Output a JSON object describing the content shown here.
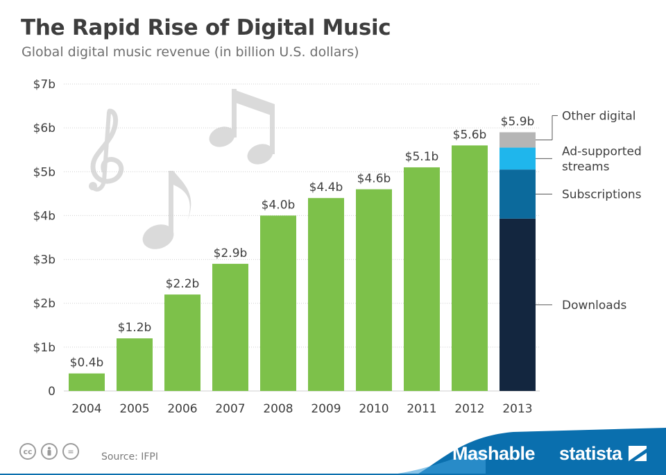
{
  "header": {
    "title": "The Rapid Rise of Digital Music",
    "subtitle": "Global digital music revenue (in billion U.S. dollars)"
  },
  "footer": {
    "source": "Source: IFPI",
    "license_icons": [
      "cc",
      "by",
      "="
    ],
    "brand_left": "Mashable",
    "brand_right": "statista"
  },
  "colors": {
    "bar": "#7dc14a",
    "downloads": "#13263f",
    "subscriptions": "#0c6a9c",
    "ad_supported": "#1fb6ec",
    "other_digital": "#b5b5b5",
    "grid": "#cfcfcf",
    "text": "#3d3d3d",
    "footer_band": "#0a6fae",
    "notes": "#d9d9d9"
  },
  "chart_data": {
    "type": "bar",
    "categories": [
      "2004",
      "2005",
      "2006",
      "2007",
      "2008",
      "2009",
      "2010",
      "2011",
      "2012",
      "2013"
    ],
    "values": [
      0.4,
      1.2,
      2.2,
      2.9,
      4.0,
      4.4,
      4.6,
      5.1,
      5.6,
      5.9
    ],
    "value_labels": [
      "$0.4b",
      "$1.2b",
      "$2.2b",
      "$2.9b",
      "$4.0b",
      "$4.4b",
      "$4.6b",
      "$5.1b",
      "$5.6b",
      "$5.9b"
    ],
    "ylim": [
      0,
      7
    ],
    "yticks": [
      0,
      1,
      2,
      3,
      4,
      5,
      6,
      7
    ],
    "ytick_labels": [
      "0",
      "$1b",
      "$2b",
      "$3b",
      "$4b",
      "$5b",
      "$6b",
      "$7b"
    ],
    "grid": true,
    "breakdown": {
      "category": "2013",
      "series": [
        {
          "name": "Downloads",
          "value": 3.93
        },
        {
          "name": "Subscriptions",
          "value": 1.12
        },
        {
          "name": "Ad-supported streams",
          "value": 0.5
        },
        {
          "name": "Other digital",
          "value": 0.35
        }
      ],
      "legend_lines": [
        [
          "Downloads"
        ],
        [
          "Subscriptions"
        ],
        [
          "Ad-supported",
          "streams"
        ],
        [
          "Other digital"
        ]
      ]
    }
  }
}
